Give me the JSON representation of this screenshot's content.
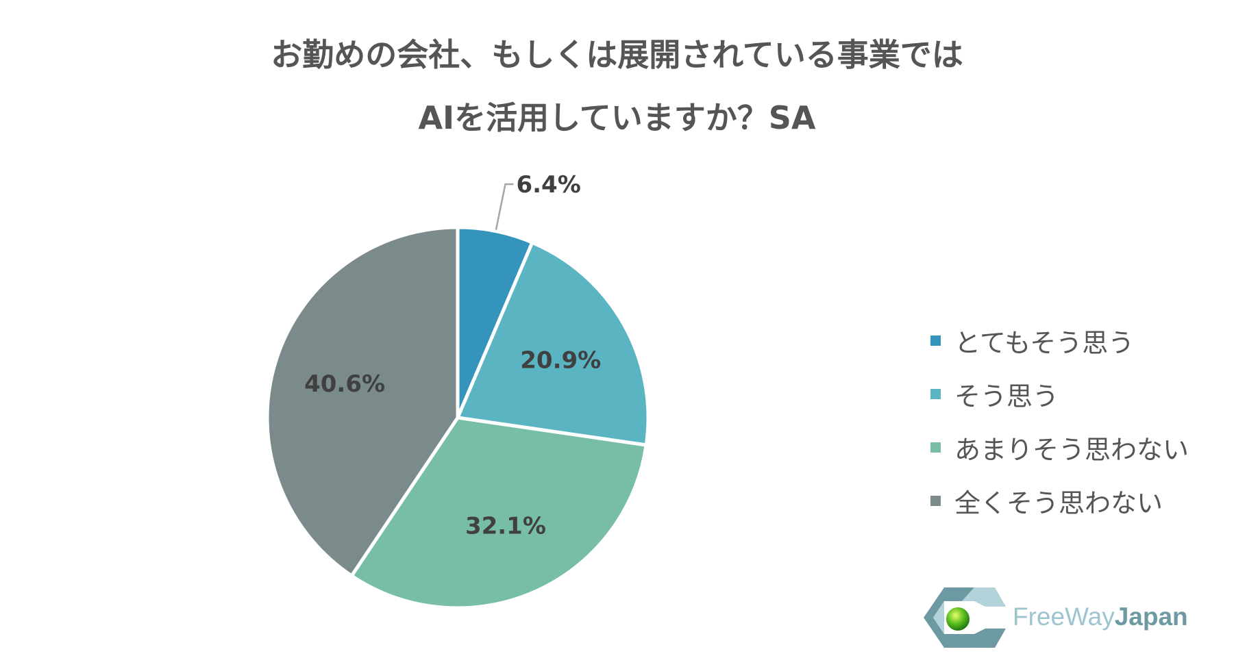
{
  "title_lines": [
    "お勤めの会社、もしくは展開されている事業では",
    "AIを活用していますか？SA"
  ],
  "chart_data": {
    "type": "pie",
    "title": "お勤めの会社、もしくは展開されている事業では AIを活用していますか？SA",
    "categories": [
      "とてもそう思う",
      "そう思う",
      "あまりそう思わない",
      "全くそう思わない"
    ],
    "values": [
      6.4,
      20.9,
      32.1,
      40.6
    ],
    "value_labels": [
      "6.4%",
      "20.9%",
      "32.1%",
      "40.6%"
    ],
    "colors": [
      "#3594bc",
      "#5ab4c1",
      "#78bea7",
      "#7b8b8b"
    ],
    "legend_placement": "right",
    "start_angle": "top",
    "direction": "clockwise"
  },
  "legend": [
    {
      "label": "とてもそう思う",
      "color": "#3594bc"
    },
    {
      "label": "そう思う",
      "color": "#5ab4c1"
    },
    {
      "label": "あまりそう思わない",
      "color": "#78bea7"
    },
    {
      "label": "全くそう思わない",
      "color": "#7b8b8b"
    }
  ],
  "logo": {
    "name_part1": "FreeWay",
    "name_part2": "Japan",
    "colors": {
      "dark": "#6d99a2",
      "light": "#b3d2d9",
      "sphere": "#5cbf1f"
    }
  }
}
